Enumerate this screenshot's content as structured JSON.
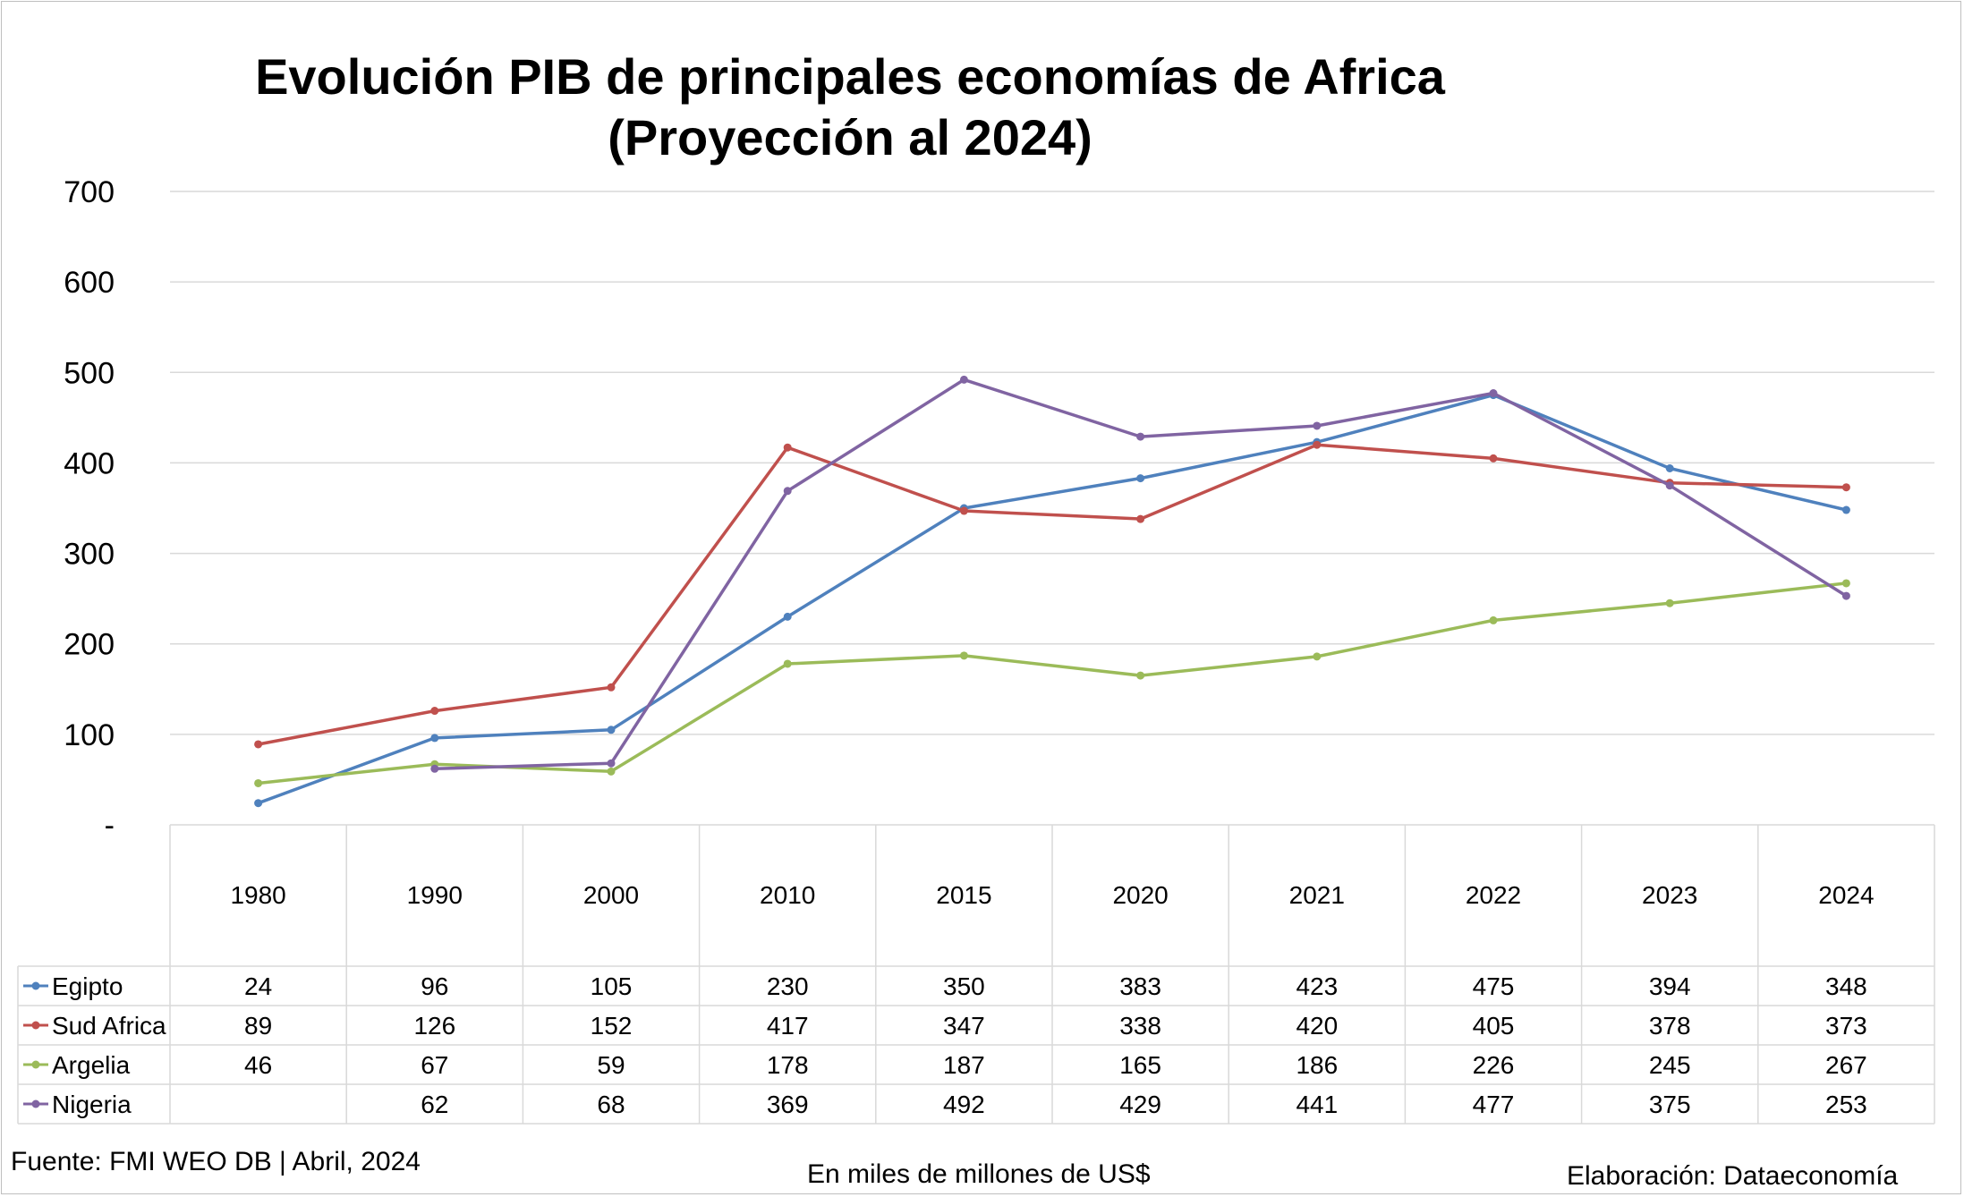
{
  "chart_data": {
    "type": "line",
    "title": "Evolución PIB de principales economías de Africa (Proyección al 2024)",
    "categories": [
      "1980",
      "1990",
      "2000",
      "2010",
      "2015",
      "2020",
      "2021",
      "2022",
      "2023",
      "2024"
    ],
    "y_ticks": [
      "700",
      "600",
      "500",
      "400",
      "300",
      "200",
      "100",
      "-"
    ],
    "ylim": [
      0,
      700
    ],
    "grid": true,
    "legend": "data-table",
    "series": [
      {
        "name": "Egipto",
        "color": "#4f81bd",
        "values": [
          24,
          96,
          105,
          230,
          350,
          383,
          423,
          475,
          394,
          348
        ]
      },
      {
        "name": "Sud Africa",
        "color": "#c0504d",
        "values": [
          89,
          126,
          152,
          417,
          347,
          338,
          420,
          405,
          378,
          373
        ]
      },
      {
        "name": "Argelia",
        "color": "#9bbb59",
        "values": [
          46,
          67,
          59,
          178,
          187,
          165,
          186,
          226,
          245,
          267
        ]
      },
      {
        "name": "Nigeria",
        "color": "#8064a2",
        "values": [
          null,
          62,
          68,
          369,
          492,
          429,
          441,
          477,
          375,
          253
        ]
      }
    ]
  },
  "footer": {
    "source": "Fuente: FMI WEO DB | Abril, 2024",
    "units": "En miles de millones de US$",
    "credit": "Elaboración: Dataeconomía"
  }
}
